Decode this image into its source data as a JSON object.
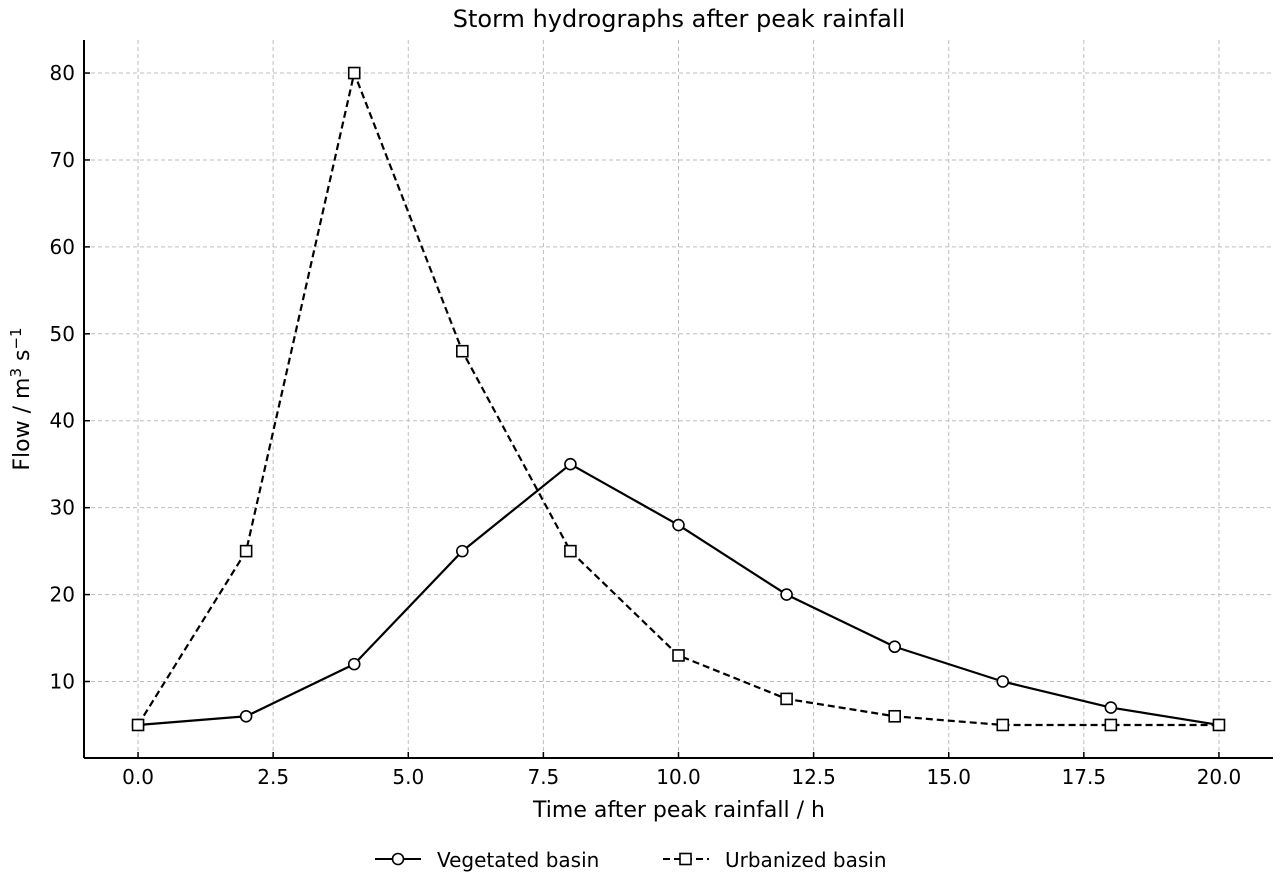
{
  "chart_data": {
    "type": "line",
    "title": "Storm hydrographs after peak rainfall",
    "xlabel": "Time after peak rainfall / h",
    "ylabel": {
      "base": "Flow / m",
      "sup1": "3",
      "mid": " s",
      "sup2": "−1"
    },
    "xlim": [
      -1,
      21
    ],
    "ylim": [
      1.2,
      83.8
    ],
    "xticks": [
      0,
      2.5,
      5,
      7.5,
      10,
      12.5,
      15,
      17.5,
      20
    ],
    "xtick_labels": [
      "0.0",
      "2.5",
      "5.0",
      "7.5",
      "10.0",
      "12.5",
      "15.0",
      "17.5",
      "20.0"
    ],
    "yticks": [
      10,
      20,
      30,
      40,
      50,
      60,
      70,
      80
    ],
    "ytick_labels": [
      "10",
      "20",
      "30",
      "40",
      "50",
      "60",
      "70",
      "80"
    ],
    "grid": true,
    "legend_position": "bottom-center",
    "series": [
      {
        "name": "Vegetated basin",
        "marker": "circle",
        "line_style": "solid",
        "color": "#000000",
        "x": [
          0,
          2,
          4,
          6,
          8,
          10,
          12,
          14,
          16,
          18,
          20
        ],
        "y": [
          5,
          6,
          12,
          25,
          35,
          28,
          20,
          14,
          10,
          7,
          5
        ]
      },
      {
        "name": "Urbanized basin",
        "marker": "square",
        "line_style": "dashed",
        "color": "#000000",
        "x": [
          0,
          2,
          4,
          6,
          8,
          10,
          12,
          14,
          16,
          18,
          20
        ],
        "y": [
          5,
          25,
          80,
          48,
          25,
          13,
          8,
          6,
          5,
          5,
          5
        ]
      }
    ]
  }
}
